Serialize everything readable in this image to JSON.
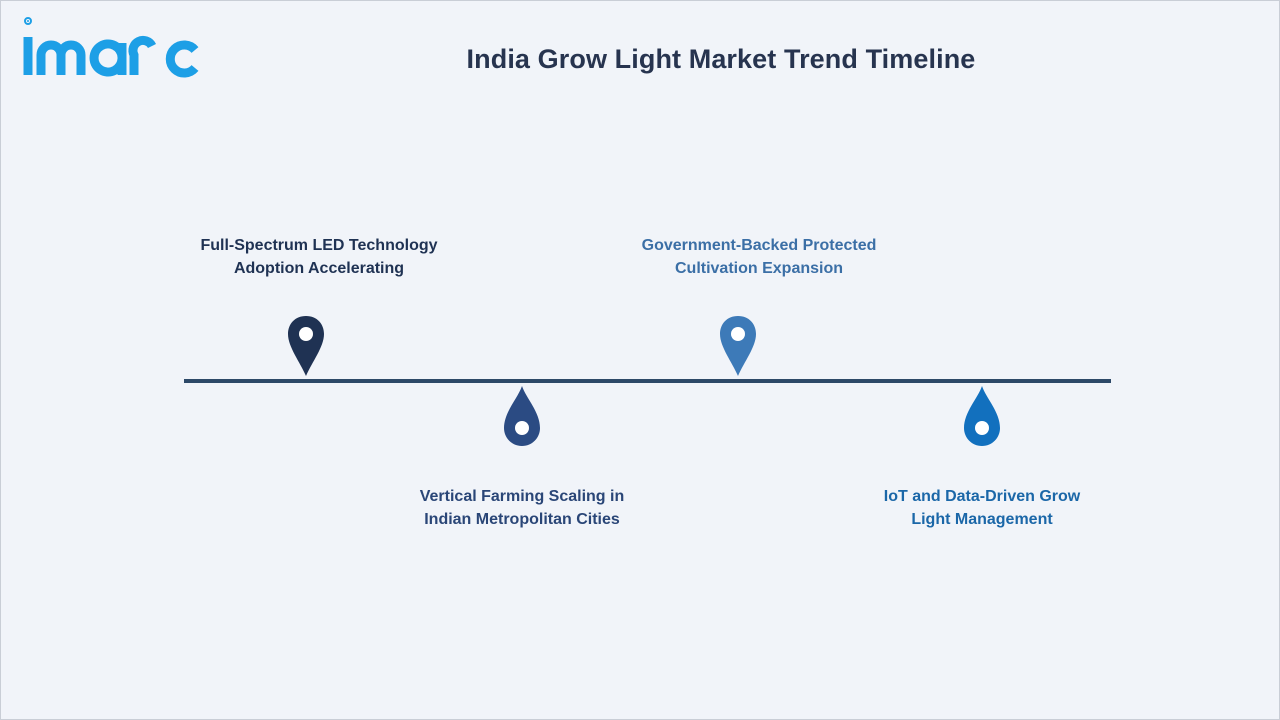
{
  "brand": {
    "logo_text": "imarc",
    "logo_color": "#1d9fe6"
  },
  "header": {
    "title": "India Grow Light Market Trend Timeline"
  },
  "timeline": {
    "line_color": "#2d4968",
    "items": [
      {
        "label_line1": "Full-Spectrum LED Technology",
        "label_line2": "Adoption Accelerating",
        "icon": "map-pin-icon",
        "color": "#1f3253",
        "position": "above"
      },
      {
        "label_line1": "Vertical Farming Scaling in",
        "label_line2": "Indian Metropolitan Cities",
        "icon": "drop-pin-icon",
        "color": "#2b4b83",
        "position": "below"
      },
      {
        "label_line1": "Government-Backed Protected",
        "label_line2": "Cultivation Expansion",
        "icon": "map-pin-icon",
        "color": "#3d7ab8",
        "position": "above"
      },
      {
        "label_line1": "IoT and Data-Driven Grow",
        "label_line2": "Light Management",
        "icon": "drop-pin-icon",
        "color": "#1270be",
        "position": "below"
      }
    ]
  }
}
